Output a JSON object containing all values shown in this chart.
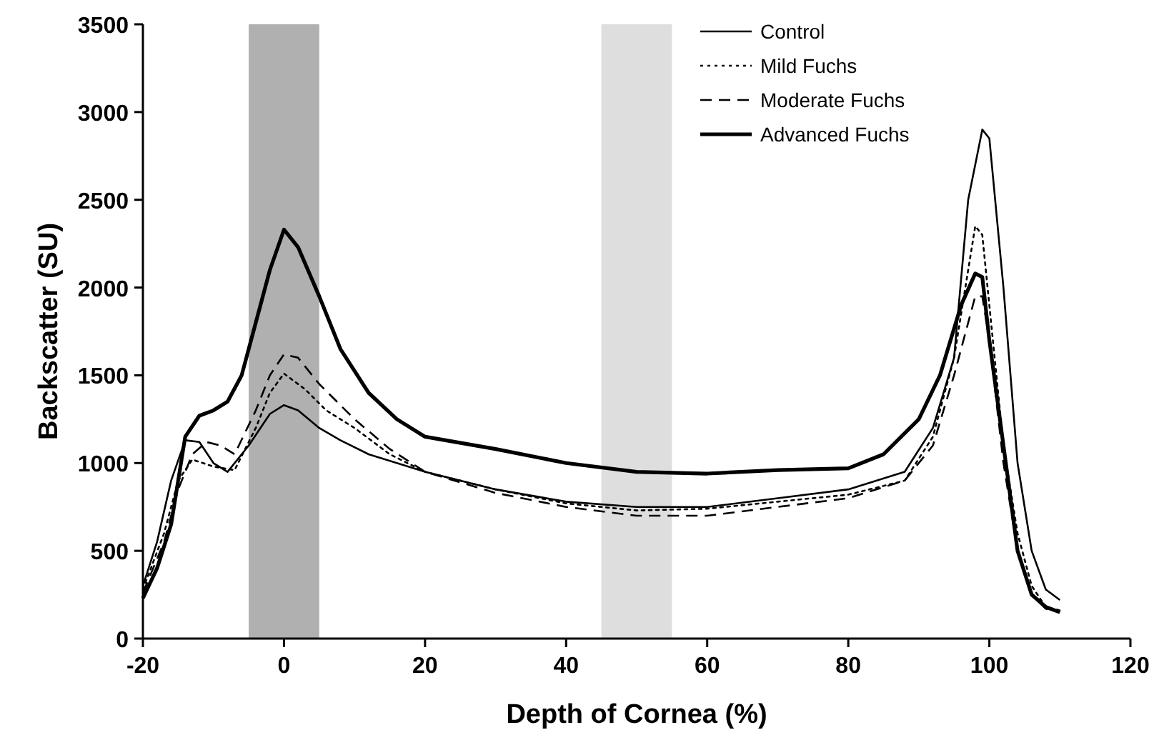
{
  "chart_data": {
    "type": "line",
    "xlabel": "Depth of Cornea (%)",
    "ylabel": "Backscatter (SU)",
    "xlim": [
      -20,
      120
    ],
    "xticks": [
      -20,
      0,
      20,
      40,
      60,
      80,
      100,
      120
    ],
    "ylim": [
      0,
      3500
    ],
    "yticks": [
      0,
      500,
      1000,
      1500,
      2000,
      2500,
      3000,
      3500
    ],
    "grid": false,
    "legend": "top right",
    "bands": [
      {
        "axis": "x",
        "from": -5,
        "to": 5,
        "color": "#b0b0b0"
      },
      {
        "axis": "x",
        "from": 45,
        "to": 55,
        "color": "#dedede"
      }
    ],
    "series": [
      {
        "name": "Control",
        "color": "#000000",
        "line_style": "solid",
        "x": [
          -20,
          -18,
          -16,
          -14,
          -12,
          -10,
          -8,
          -5,
          -2,
          0,
          2,
          5,
          8,
          12,
          20,
          30,
          40,
          50,
          60,
          70,
          80,
          88,
          92,
          95,
          97,
          99,
          100,
          102,
          104,
          106,
          108,
          110
        ],
        "values": [
          300,
          550,
          900,
          1130,
          1120,
          1000,
          950,
          1100,
          1280,
          1330,
          1300,
          1200,
          1130,
          1050,
          950,
          850,
          780,
          750,
          750,
          800,
          850,
          950,
          1200,
          1600,
          2500,
          2900,
          2850,
          2000,
          1000,
          500,
          280,
          220
        ]
      },
      {
        "name": "Mild Fuchs",
        "color": "#000000",
        "line_style": "dotted",
        "x": [
          -20,
          -17,
          -15,
          -13,
          -10,
          -7,
          -4,
          -2,
          0,
          3,
          6,
          10,
          15,
          20,
          30,
          40,
          50,
          60,
          70,
          80,
          88,
          92,
          95,
          97,
          98,
          99,
          100,
          102,
          104,
          106,
          108,
          110
        ],
        "values": [
          280,
          600,
          900,
          1020,
          980,
          960,
          1200,
          1400,
          1510,
          1420,
          1300,
          1200,
          1050,
          950,
          850,
          770,
          730,
          740,
          780,
          820,
          900,
          1150,
          1600,
          2100,
          2350,
          2300,
          1900,
          1100,
          600,
          300,
          180,
          160
        ]
      },
      {
        "name": "Moderate Fuchs",
        "color": "#000000",
        "line_style": "dashed",
        "x": [
          -20,
          -17,
          -15,
          -13,
          -11,
          -9,
          -7,
          -4,
          -2,
          0,
          2,
          5,
          10,
          15,
          20,
          30,
          40,
          50,
          60,
          70,
          80,
          88,
          92,
          95,
          97,
          98,
          99,
          100,
          102,
          104,
          106,
          108,
          110
        ],
        "values": [
          260,
          550,
          850,
          1050,
          1120,
          1100,
          1050,
          1300,
          1500,
          1620,
          1600,
          1450,
          1250,
          1080,
          950,
          830,
          750,
          700,
          700,
          750,
          800,
          900,
          1100,
          1500,
          1800,
          1950,
          1950,
          1700,
          1000,
          500,
          250,
          170,
          150
        ]
      },
      {
        "name": "Advanced Fuchs",
        "color": "#000000",
        "line_style": "solid",
        "x": [
          -20,
          -18,
          -16,
          -15,
          -14,
          -12,
          -10,
          -8,
          -6,
          -4,
          -2,
          0,
          2,
          5,
          8,
          12,
          16,
          20,
          30,
          40,
          50,
          60,
          70,
          80,
          85,
          90,
          93,
          96,
          98,
          99,
          100,
          102,
          104,
          106,
          108,
          110
        ],
        "values": [
          230,
          400,
          650,
          900,
          1150,
          1270,
          1300,
          1350,
          1500,
          1800,
          2100,
          2330,
          2230,
          1950,
          1650,
          1400,
          1250,
          1150,
          1080,
          1000,
          950,
          940,
          960,
          970,
          1050,
          1250,
          1500,
          1900,
          2080,
          2060,
          1700,
          1100,
          500,
          250,
          180,
          150
        ]
      }
    ]
  }
}
